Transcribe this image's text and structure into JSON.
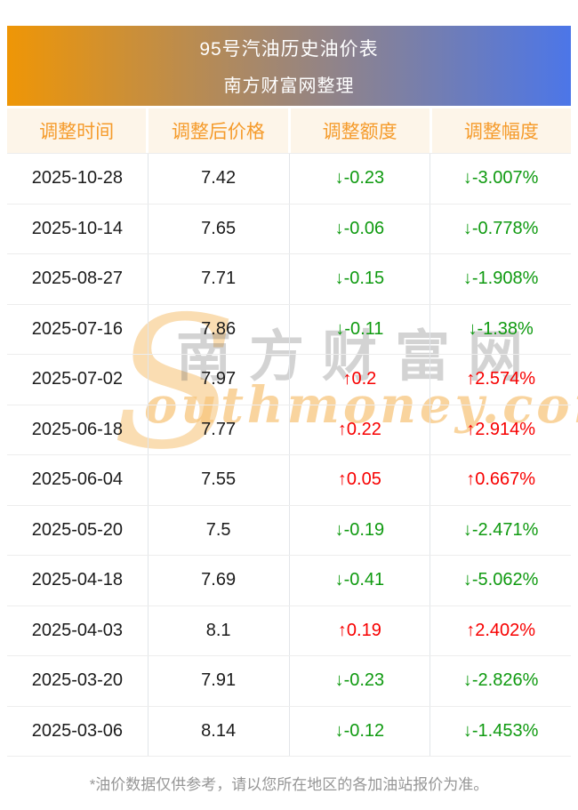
{
  "banner": {
    "title": "95号汽油历史油价表",
    "subtitle": "南方财富网整理"
  },
  "table": {
    "headers": [
      "调整时间",
      "调整后价格",
      "调整额度",
      "调整幅度"
    ],
    "rows": [
      {
        "date": "2025-10-28",
        "price": "7.42",
        "change": "↓-0.23",
        "pct": "↓-3.007%",
        "direction": "down"
      },
      {
        "date": "2025-10-14",
        "price": "7.65",
        "change": "↓-0.06",
        "pct": "↓-0.778%",
        "direction": "down"
      },
      {
        "date": "2025-08-27",
        "price": "7.71",
        "change": "↓-0.15",
        "pct": "↓-1.908%",
        "direction": "down"
      },
      {
        "date": "2025-07-16",
        "price": "7.86",
        "change": "↓-0.11",
        "pct": "↓-1.38%",
        "direction": "down"
      },
      {
        "date": "2025-07-02",
        "price": "7.97",
        "change": "↑0.2",
        "pct": "↑2.574%",
        "direction": "up"
      },
      {
        "date": "2025-06-18",
        "price": "7.77",
        "change": "↑0.22",
        "pct": "↑2.914%",
        "direction": "up"
      },
      {
        "date": "2025-06-04",
        "price": "7.55",
        "change": "↑0.05",
        "pct": "↑0.667%",
        "direction": "up"
      },
      {
        "date": "2025-05-20",
        "price": "7.5",
        "change": "↓-0.19",
        "pct": "↓-2.471%",
        "direction": "down"
      },
      {
        "date": "2025-04-18",
        "price": "7.69",
        "change": "↓-0.41",
        "pct": "↓-5.062%",
        "direction": "down"
      },
      {
        "date": "2025-04-03",
        "price": "8.1",
        "change": "↑0.19",
        "pct": "↑2.402%",
        "direction": "up"
      },
      {
        "date": "2025-03-20",
        "price": "7.91",
        "change": "↓-0.23",
        "pct": "↓-2.826%",
        "direction": "down"
      },
      {
        "date": "2025-03-06",
        "price": "8.14",
        "change": "↓-0.12",
        "pct": "↓-1.453%",
        "direction": "down"
      }
    ]
  },
  "watermark": {
    "s_glyph": "S",
    "cn": "南方财富网",
    "en": "outhmoney.com"
  },
  "footer": {
    "note": "*油价数据仅供参考，请以您所在地区的各加油站报价为准。"
  },
  "colors": {
    "banner_left": "#ef9606",
    "banner_right": "#4c76e8",
    "header_bg": "#fdf5e9",
    "header_text": "#f59b2b",
    "up": "#f70000",
    "down": "#0f9a10"
  },
  "chart_data": {
    "type": "table",
    "title": "95号汽油历史油价表",
    "subtitle": "南方财富网整理",
    "columns": [
      "调整时间",
      "调整后价格",
      "调整额度",
      "调整幅度"
    ],
    "rows": [
      [
        "2025-10-28",
        7.42,
        -0.23,
        "-3.007%"
      ],
      [
        "2025-10-14",
        7.65,
        -0.06,
        "-0.778%"
      ],
      [
        "2025-08-27",
        7.71,
        -0.15,
        "-1.908%"
      ],
      [
        "2025-07-16",
        7.86,
        -0.11,
        "-1.38%"
      ],
      [
        "2025-07-02",
        7.97,
        0.2,
        "2.574%"
      ],
      [
        "2025-06-18",
        7.77,
        0.22,
        "2.914%"
      ],
      [
        "2025-06-04",
        7.55,
        0.05,
        "0.667%"
      ],
      [
        "2025-05-20",
        7.5,
        -0.19,
        "-2.471%"
      ],
      [
        "2025-04-18",
        7.69,
        -0.41,
        "-5.062%"
      ],
      [
        "2025-04-03",
        8.1,
        0.19,
        "2.402%"
      ],
      [
        "2025-03-20",
        7.91,
        -0.23,
        "-2.826%"
      ],
      [
        "2025-03-06",
        8.14,
        -0.12,
        "-1.453%"
      ]
    ],
    "note": "*油价数据仅供参考，请以您所在地区的各加油站报价为准。"
  }
}
